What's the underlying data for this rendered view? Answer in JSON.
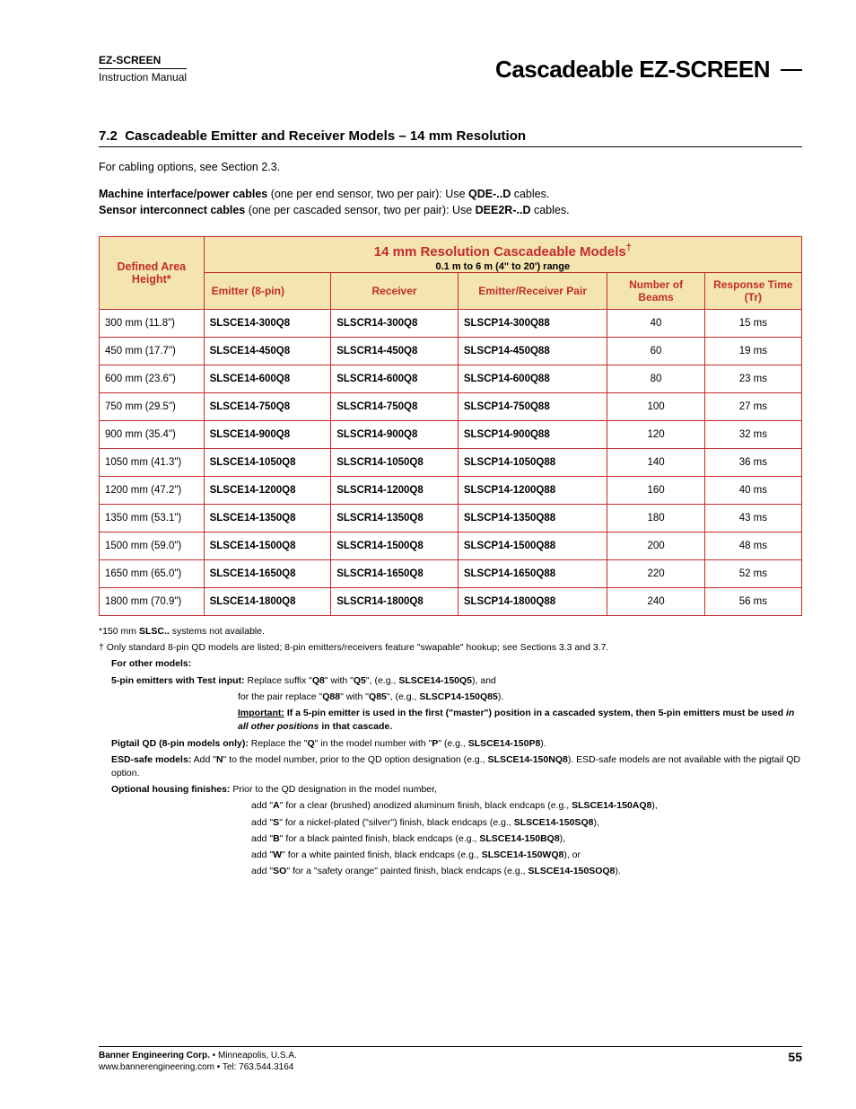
{
  "header": {
    "brand": "EZ-SCREEN",
    "subtitle": "Instruction Manual",
    "right_title": "Cascadeable EZ-SCREEN"
  },
  "section": {
    "number": "7.2",
    "title": "Cascadeable Emitter and Receiver Models – 14 mm Resolution"
  },
  "intro": {
    "line1": "For cabling options, see Section 2.3.",
    "line2_bold": "Machine interface/power cables",
    "line2_rest": " (one per end sensor, two per pair): Use ",
    "line2_bold2": "QDE-..D",
    "line2_rest2": " cables.",
    "line3_bold": "Sensor interconnect cables",
    "line3_rest": " (one per cascaded sensor, two per pair): Use ",
    "line3_bold2": "DEE2R-..D",
    "line3_rest2": " cables."
  },
  "table": {
    "defined_area": "Defined Area Height*",
    "models_header": "14 mm Resolution Cascadeable Models",
    "models_dagger": "†",
    "range": "0.1 m to 6 m (4\" to 20') range",
    "col_emitter": "Emitter (8-pin)",
    "col_receiver": "Receiver",
    "col_pair": "Emitter/Receiver Pair",
    "col_beams": "Number of Beams",
    "col_response": "Response Time (Tr)",
    "rows": [
      {
        "height": "300 mm (11.8\")",
        "emitter": "SLSCE14-300Q8",
        "receiver": "SLSCR14-300Q8",
        "pair": "SLSCP14-300Q88",
        "beams": "40",
        "resp": "15 ms"
      },
      {
        "height": "450 mm (17.7\")",
        "emitter": "SLSCE14-450Q8",
        "receiver": "SLSCR14-450Q8",
        "pair": "SLSCP14-450Q88",
        "beams": "60",
        "resp": "19 ms"
      },
      {
        "height": "600 mm (23.6\")",
        "emitter": "SLSCE14-600Q8",
        "receiver": "SLSCR14-600Q8",
        "pair": "SLSCP14-600Q88",
        "beams": "80",
        "resp": "23 ms"
      },
      {
        "height": "750 mm (29.5\")",
        "emitter": "SLSCE14-750Q8",
        "receiver": "SLSCR14-750Q8",
        "pair": "SLSCP14-750Q88",
        "beams": "100",
        "resp": "27 ms"
      },
      {
        "height": "900 mm (35.4\")",
        "emitter": "SLSCE14-900Q8",
        "receiver": "SLSCR14-900Q8",
        "pair": "SLSCP14-900Q88",
        "beams": "120",
        "resp": "32 ms"
      },
      {
        "height": "1050 mm (41.3\")",
        "emitter": "SLSCE14-1050Q8",
        "receiver": "SLSCR14-1050Q8",
        "pair": "SLSCP14-1050Q88",
        "beams": "140",
        "resp": "36 ms"
      },
      {
        "height": "1200 mm (47.2\")",
        "emitter": "SLSCE14-1200Q8",
        "receiver": "SLSCR14-1200Q8",
        "pair": "SLSCP14-1200Q88",
        "beams": "160",
        "resp": "40 ms"
      },
      {
        "height": "1350 mm (53.1\")",
        "emitter": "SLSCE14-1350Q8",
        "receiver": "SLSCR14-1350Q8",
        "pair": "SLSCP14-1350Q88",
        "beams": "180",
        "resp": "43 ms"
      },
      {
        "height": "1500 mm (59.0\")",
        "emitter": "SLSCE14-1500Q8",
        "receiver": "SLSCR14-1500Q8",
        "pair": "SLSCP14-1500Q88",
        "beams": "200",
        "resp": "48 ms"
      },
      {
        "height": "1650 mm (65.0\")",
        "emitter": "SLSCE14-1650Q8",
        "receiver": "SLSCR14-1650Q8",
        "pair": "SLSCP14-1650Q88",
        "beams": "220",
        "resp": "52 ms"
      },
      {
        "height": "1800 mm (70.9\")",
        "emitter": "SLSCE14-1800Q8",
        "receiver": "SLSCR14-1800Q8",
        "pair": "SLSCP14-1800Q88",
        "beams": "240",
        "resp": "56 ms"
      }
    ]
  },
  "footnotes": {
    "asterisk_pre": "*150 mm ",
    "asterisk_bold": "SLSC..",
    "asterisk_post": " systems not available.",
    "dagger": "† Only standard 8-pin QD models are listed; 8-pin emitters/receivers feature \"swapable\" hookup; see Sections 3.3 and 3.7.",
    "for_other": "For other models:",
    "fivepin_bold": "5-pin emitters with Test input:",
    "fivepin_text1": " Replace suffix \"",
    "fivepin_q8": "Q8",
    "fivepin_text2": "\" with \"",
    "fivepin_q5": "Q5",
    "fivepin_text3": "\", (e.g., ",
    "fivepin_ex1": "SLSCE14-150Q5",
    "fivepin_text4": "), and",
    "fivepin_line2a": "for the pair replace \"",
    "fivepin_q88": "Q88",
    "fivepin_line2b": "\" with \"",
    "fivepin_q85": "Q85",
    "fivepin_line2c": "\", (e.g., ",
    "fivepin_ex2": "SLSCP14-150Q85",
    "fivepin_line2d": ").",
    "important_label": "Important:",
    "important_text": " If a 5-pin emitter is used in the first (\"master\") position in a cascaded system, then 5-pin emitters must be used ",
    "important_italic": "in all other positions",
    "important_text2": " in that cascade.",
    "pigtail_bold": "Pigtail QD (8-pin models only):",
    "pigtail_text1": " Replace the \"",
    "pigtail_q": "Q",
    "pigtail_text2": "\" in the model number with \"",
    "pigtail_p": "P",
    "pigtail_text3": "\" (e.g., ",
    "pigtail_ex": "SLSCE14-150P8",
    "pigtail_text4": ").",
    "esd_bold": "ESD-safe models:",
    "esd_text1": " Add \"",
    "esd_n": "N",
    "esd_text2": "\" to the model number, prior to the QD option designation (e.g., ",
    "esd_ex": "SLSCE14-150NQ8",
    "esd_text3": "). ESD-safe models are not available with the pigtail QD option.",
    "housing_bold": "Optional housing finishes:",
    "housing_intro": "  Prior to the QD designation in the model number,",
    "housing_a1": "add \"",
    "housing_a_bold": "A",
    "housing_a2": "\" for a clear (brushed) anodized aluminum finish, black endcaps (e.g., ",
    "housing_a_ex": "SLSCE14-150AQ8",
    "housing_a3": "),",
    "housing_s1": "add \"",
    "housing_s_bold": "S",
    "housing_s2": "\" for a nickel-plated (\"silver\") finish, black endcaps (e.g., ",
    "housing_s_ex": "SLSCE14-150SQ8",
    "housing_s3": "),",
    "housing_b1": "add \"",
    "housing_b_bold": "B",
    "housing_b2": "\" for a black painted finish, black endcaps (e.g., ",
    "housing_b_ex": "SLSCE14-150BQ8",
    "housing_b3": "),",
    "housing_w1": "add \"",
    "housing_w_bold": "W",
    "housing_w2": "\" for a white painted finish, black endcaps (e.g., ",
    "housing_w_ex": "SLSCE14-150WQ8",
    "housing_w3": "), or",
    "housing_so1": "add \"",
    "housing_so_bold": "SO",
    "housing_so2": "\" for a \"safety orange\" painted finish, black endcaps (e.g., ",
    "housing_so_ex": "SLSCE14-150SOQ8",
    "housing_so3": ")."
  },
  "footer": {
    "company": "Banner Engineering Corp.",
    "location": " • Minneapolis, U.S.A.",
    "contact": "www.bannerengineering.com  •  Tel: 763.544.3164",
    "page": "55"
  },
  "colors": {
    "header_bg": "#f4e5b0",
    "header_text": "#c22c2c",
    "border": "#c22c2c"
  }
}
